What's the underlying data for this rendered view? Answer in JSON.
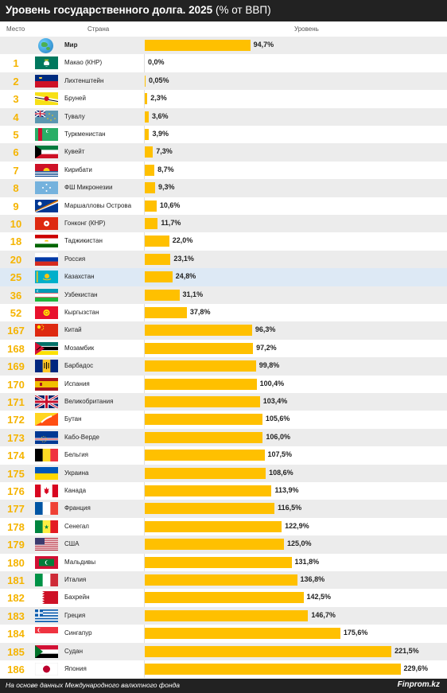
{
  "header": {
    "title": "Уровень государственного долга. 2025",
    "subtitle": "(% от ВВП)"
  },
  "columns": {
    "rank": "Место",
    "country": "Страна",
    "level": "Уровень"
  },
  "footer": {
    "note": "На основе данных Международного валютного фонда",
    "brand": "Finprom.kz"
  },
  "colors": {
    "bar": "#ffc000",
    "rank": "#f5b400",
    "header_bg": "#222222",
    "row_stripe": "#ececec",
    "row_highlight": "#dde9f5"
  },
  "chart_data": {
    "type": "bar",
    "title": "Уровень государственного долга. 2025",
    "subtitle": "(% от ВВП)",
    "xlabel": "",
    "ylabel": "Уровень",
    "unit": "% от ВВП",
    "xlim": [
      0,
      229.6
    ],
    "rows": [
      {
        "rank": "",
        "country": "Мир",
        "value": 94.7,
        "label": "94,7%",
        "flag": "globe-icon",
        "bold": true
      },
      {
        "rank": "1",
        "country": "Макао (КНР)",
        "value": 0.0,
        "label": "0,0%",
        "flag": "macau"
      },
      {
        "rank": "2",
        "country": "Лихтенштейн",
        "value": 0.05,
        "label": "0,05%",
        "flag": "liechtenstein"
      },
      {
        "rank": "3",
        "country": "Бруней",
        "value": 2.3,
        "label": "2,3%",
        "flag": "brunei"
      },
      {
        "rank": "4",
        "country": "Тувалу",
        "value": 3.6,
        "label": "3,6%",
        "flag": "tuvalu"
      },
      {
        "rank": "5",
        "country": "Туркменистан",
        "value": 3.9,
        "label": "3,9%",
        "flag": "turkmenistan"
      },
      {
        "rank": "6",
        "country": "Кувейт",
        "value": 7.3,
        "label": "7,3%",
        "flag": "kuwait"
      },
      {
        "rank": "7",
        "country": "Кирибати",
        "value": 8.7,
        "label": "8,7%",
        "flag": "kiribati"
      },
      {
        "rank": "8",
        "country": "ФШ Микронезии",
        "value": 9.3,
        "label": "9,3%",
        "flag": "micronesia"
      },
      {
        "rank": "9",
        "country": "Маршалловы Острова",
        "value": 10.6,
        "label": "10,6%",
        "flag": "marshall"
      },
      {
        "rank": "10",
        "country": "Гонконг (КНР)",
        "value": 11.7,
        "label": "11,7%",
        "flag": "hongkong"
      },
      {
        "rank": "18",
        "country": "Таджикистан",
        "value": 22.0,
        "label": "22,0%",
        "flag": "tajikistan"
      },
      {
        "rank": "20",
        "country": "Россия",
        "value": 23.1,
        "label": "23,1%",
        "flag": "russia"
      },
      {
        "rank": "25",
        "country": "Казахстан",
        "value": 24.8,
        "label": "24,8%",
        "flag": "kazakhstan",
        "highlight": true
      },
      {
        "rank": "36",
        "country": "Узбекистан",
        "value": 31.1,
        "label": "31,1%",
        "flag": "uzbekistan"
      },
      {
        "rank": "52",
        "country": "Кыргызстан",
        "value": 37.8,
        "label": "37,8%",
        "flag": "kyrgyzstan"
      },
      {
        "rank": "167",
        "country": "Китай",
        "value": 96.3,
        "label": "96,3%",
        "flag": "china"
      },
      {
        "rank": "168",
        "country": "Мозамбик",
        "value": 97.2,
        "label": "97,2%",
        "flag": "mozambique"
      },
      {
        "rank": "169",
        "country": "Барбадос",
        "value": 99.8,
        "label": "99,8%",
        "flag": "barbados"
      },
      {
        "rank": "170",
        "country": "Испания",
        "value": 100.4,
        "label": "100,4%",
        "flag": "spain"
      },
      {
        "rank": "171",
        "country": "Великобритания",
        "value": 103.4,
        "label": "103,4%",
        "flag": "uk"
      },
      {
        "rank": "172",
        "country": "Бутан",
        "value": 105.6,
        "label": "105,6%",
        "flag": "bhutan"
      },
      {
        "rank": "173",
        "country": "Кабо-Верде",
        "value": 106.0,
        "label": "106,0%",
        "flag": "capeverde"
      },
      {
        "rank": "174",
        "country": "Бельгия",
        "value": 107.5,
        "label": "107,5%",
        "flag": "belgium"
      },
      {
        "rank": "175",
        "country": "Украина",
        "value": 108.6,
        "label": "108,6%",
        "flag": "ukraine"
      },
      {
        "rank": "176",
        "country": "Канада",
        "value": 113.9,
        "label": "113,9%",
        "flag": "canada"
      },
      {
        "rank": "177",
        "country": "Франция",
        "value": 116.5,
        "label": "116,5%",
        "flag": "france"
      },
      {
        "rank": "178",
        "country": "Сенегал",
        "value": 122.9,
        "label": "122,9%",
        "flag": "senegal"
      },
      {
        "rank": "179",
        "country": "США",
        "value": 125.0,
        "label": "125,0%",
        "flag": "usa"
      },
      {
        "rank": "180",
        "country": "Мальдивы",
        "value": 131.8,
        "label": "131,8%",
        "flag": "maldives"
      },
      {
        "rank": "181",
        "country": "Италия",
        "value": 136.8,
        "label": "136,8%",
        "flag": "italy"
      },
      {
        "rank": "182",
        "country": "Бахрейн",
        "value": 142.5,
        "label": "142,5%",
        "flag": "bahrain"
      },
      {
        "rank": "183",
        "country": "Греция",
        "value": 146.7,
        "label": "146,7%",
        "flag": "greece"
      },
      {
        "rank": "184",
        "country": "Сингапур",
        "value": 175.6,
        "label": "175,6%",
        "flag": "singapore"
      },
      {
        "rank": "185",
        "country": "Судан",
        "value": 221.5,
        "label": "221,5%",
        "flag": "sudan"
      },
      {
        "rank": "186",
        "country": "Япония",
        "value": 229.6,
        "label": "229,6%",
        "flag": "japan"
      }
    ]
  }
}
